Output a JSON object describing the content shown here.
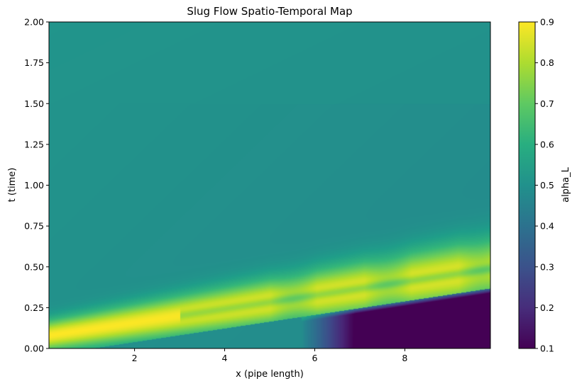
{
  "chart_data": {
    "type": "heatmap",
    "title": "Slug Flow Spatio-Temporal Map",
    "xlabel": "x (pipe length)",
    "ylabel": "t (time)",
    "xlim": [
      0.1,
      9.9
    ],
    "ylim": [
      0,
      2
    ],
    "xticks": [
      "2",
      "4",
      "6",
      "8"
    ],
    "xtick_values": [
      2,
      4,
      6,
      8
    ],
    "yticks": [
      "0.00",
      "0.25",
      "0.50",
      "0.75",
      "1.00",
      "1.25",
      "1.50",
      "1.75",
      "2.00"
    ],
    "ytick_values": [
      0,
      0.25,
      0.5,
      0.75,
      1.0,
      1.25,
      1.5,
      1.75,
      2.0
    ],
    "colormap": "viridis",
    "colorbar": {
      "label": "alpha_L",
      "range": [
        0.1,
        0.9
      ],
      "ticks": [
        "0.1",
        "0.2",
        "0.3",
        "0.4",
        "0.5",
        "0.6",
        "0.7",
        "0.8",
        "0.9"
      ],
      "tick_values": [
        0.1,
        0.2,
        0.3,
        0.4,
        0.5,
        0.6,
        0.7,
        0.8,
        0.9
      ]
    },
    "background_value": 0.5,
    "features": [
      {
        "name": "high-holdup slug front",
        "peak_value": 0.9,
        "x_start": 0.3,
        "x_end": 9.9,
        "t_at_start": 0.0,
        "t_at_end": 0.4
      },
      {
        "name": "low-holdup trailing region",
        "min_value": 0.1,
        "x_start": 6.0,
        "x_end": 9.9,
        "t_at_start": 0.0,
        "t_at_end": 0.2
      }
    ],
    "grid": false
  }
}
